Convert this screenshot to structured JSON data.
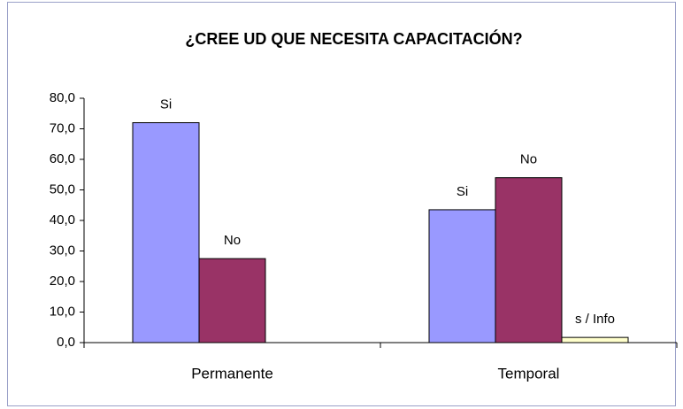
{
  "chart_data": {
    "type": "bar",
    "title": "¿CREE UD QUE NECESITA CAPACITACIÓN?",
    "categories": [
      "Permanente",
      "Temporal"
    ],
    "series": [
      {
        "name": "Si",
        "color": "#9999ff",
        "values": [
          72,
          43.5
        ]
      },
      {
        "name": "No",
        "color": "#993366",
        "values": [
          27.5,
          54
        ]
      },
      {
        "name": "s / Info",
        "color": "#ffffcc",
        "values": [
          null,
          1.7
        ]
      }
    ],
    "ylim": [
      0,
      80
    ],
    "yticks": [
      {
        "value": 0,
        "label": "0,0"
      },
      {
        "value": 10,
        "label": "10,0"
      },
      {
        "value": 20,
        "label": "20,0"
      },
      {
        "value": 30,
        "label": "30,0"
      },
      {
        "value": 40,
        "label": "40,0"
      },
      {
        "value": 50,
        "label": "50,0"
      },
      {
        "value": 60,
        "label": "60,0"
      },
      {
        "value": 70,
        "label": "70,0"
      },
      {
        "value": 80,
        "label": "80,0"
      }
    ],
    "grid": false
  }
}
